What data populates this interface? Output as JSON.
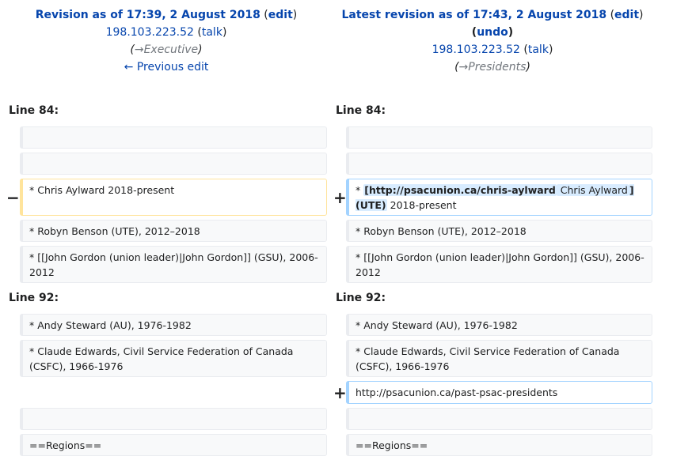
{
  "left_header": {
    "title": "Revision as of 17:39, 2 August 2018",
    "edit_link": "edit",
    "user": "198.103.223.52",
    "talk_link": "talk",
    "summary_arrow": "→",
    "summary_section": "Executive",
    "prev_link": "← Previous edit"
  },
  "right_header": {
    "title": "Latest revision as of 17:43, 2 August 2018",
    "edit_link": "edit",
    "undo_link": "undo",
    "user": "198.103.223.52",
    "talk_link": "talk",
    "summary_arrow": "→",
    "summary_section": "Presidents"
  },
  "line_labels": {
    "line84_left": "Line 84:",
    "line84_right": "Line 84:",
    "line92_left": "Line 92:",
    "line92_right": "Line 92:"
  },
  "markers": {
    "minus": "−",
    "plus": "+"
  },
  "rows": {
    "del_left": "* Chris Aylward 2018-present",
    "add_right_prefix": "* ",
    "add_right_ins1": "[http://psacunion.ca/chris-aylward",
    "add_right_mid": " Chris Aylward",
    "add_right_ins2": "] (UTE)",
    "add_right_suffix": " 2018-present",
    "robyn": "* Robyn Benson (UTE), 2012–2018",
    "john": "* [[John Gordon (union leader)|John Gordon]] (GSU), 2006-2012",
    "andy": "* Andy Steward (AU), 1976-1982",
    "claude": "* Claude Edwards, Civil Service Federation of Canada (CSFC), 1966-1976",
    "psac_link": "http://psacunion.ca/past-psac-presidents",
    "regions": "==Regions=="
  }
}
